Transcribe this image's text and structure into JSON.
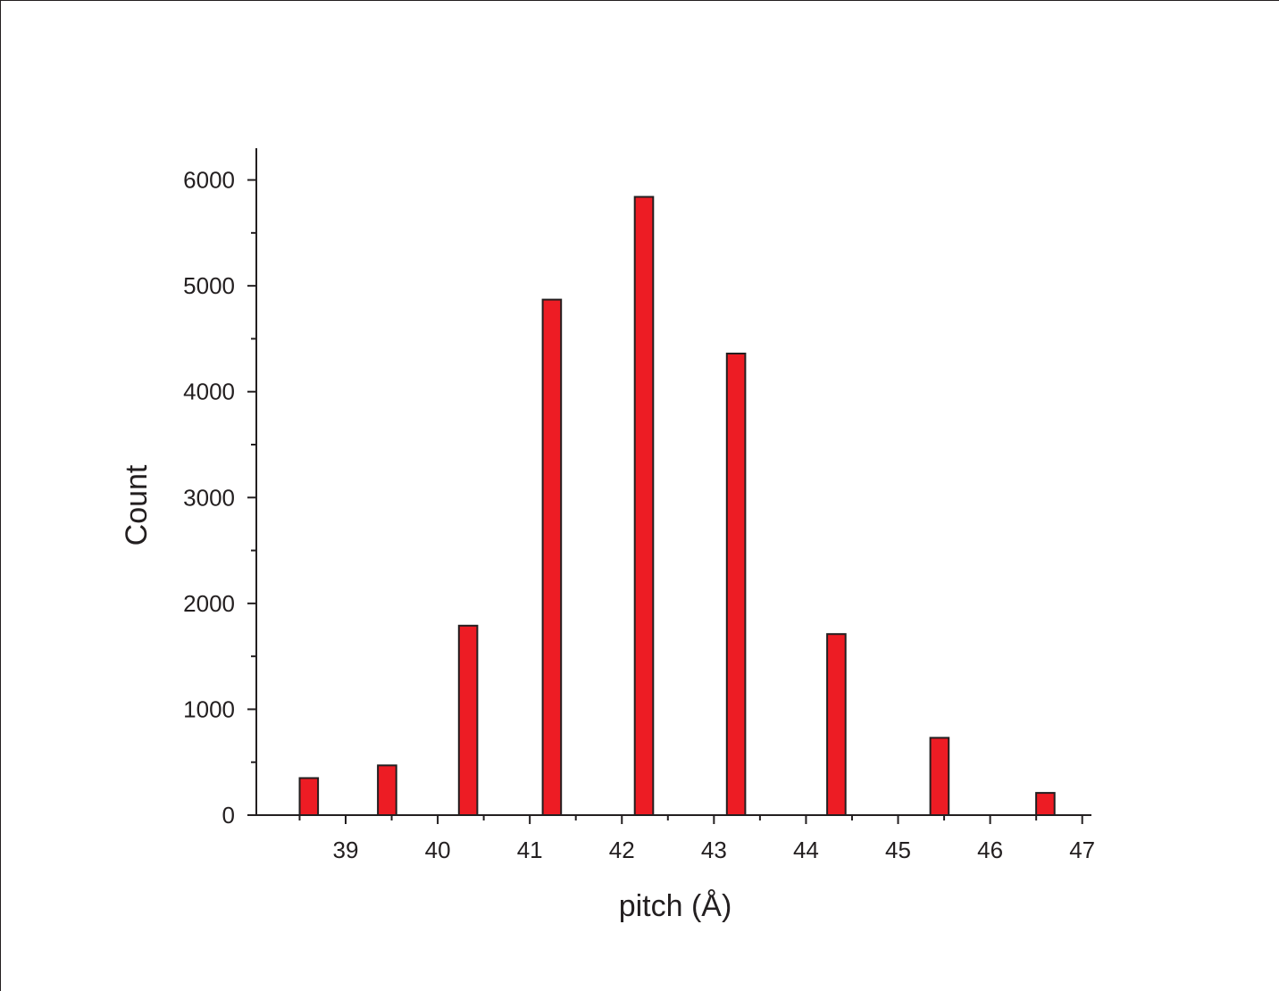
{
  "chart_data": {
    "type": "bar",
    "title": "",
    "xlabel": "pitch (Å)",
    "ylabel": "Count",
    "xlim": [
      38.03,
      47.1
    ],
    "ylim": [
      0,
      6300
    ],
    "x_ticks": [
      39,
      40,
      41,
      42,
      43,
      44,
      45,
      46,
      47
    ],
    "y_ticks": [
      0,
      1000,
      2000,
      3000,
      4000,
      5000,
      6000
    ],
    "bar_width": 0.2,
    "bar_color": "#ed1c24",
    "edge_color": "#231f20",
    "grid": false,
    "legend": "none",
    "x": [
      38.6,
      39.45,
      40.33,
      41.24,
      42.24,
      43.24,
      44.33,
      45.45,
      46.6
    ],
    "values": [
      350,
      470,
      1790,
      4870,
      5840,
      4360,
      1710,
      730,
      210
    ]
  }
}
